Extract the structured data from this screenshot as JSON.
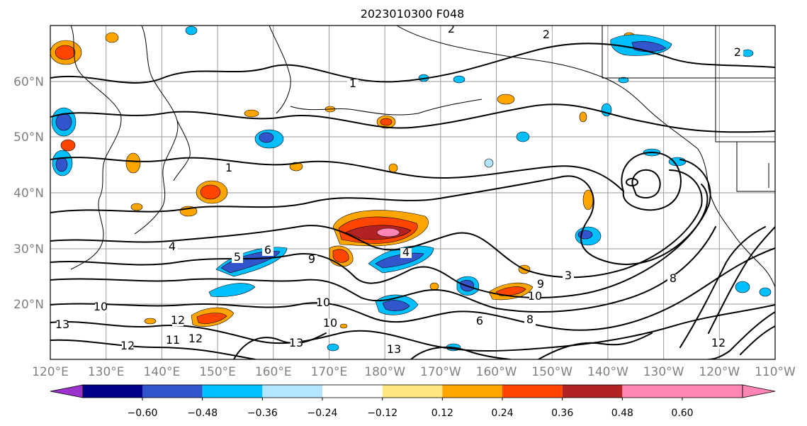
{
  "title": "2023010300 F048",
  "latitude_labels": [
    "60°N",
    "50°N",
    "40°N",
    "30°N",
    "20°N"
  ],
  "longitude_labels": [
    "120°E",
    "130°E",
    "140°E",
    "150°E",
    "160°E",
    "170°E",
    "180°W",
    "170°W",
    "160°W",
    "150°W",
    "140°W",
    "130°W",
    "120°W",
    "110°W"
  ],
  "colorbar": {
    "tick_labels": [
      "−0.60",
      "−0.48",
      "−0.36",
      "−0.24",
      "−0.12",
      "0.12",
      "0.24",
      "0.36",
      "0.48",
      "0.60"
    ],
    "colors": [
      "#9933cc",
      "#00008b",
      "#3355cc",
      "#00bfff",
      "#b3e5ff",
      "#ffffff",
      "#ffe680",
      "#ffa500",
      "#ff4500",
      "#b22222",
      "#ff85b4"
    ]
  },
  "contour_labels": [
    "2",
    "2",
    "2",
    "1",
    "4",
    "9",
    "10",
    "12",
    "12",
    "13",
    "12",
    "3",
    "10",
    "8",
    "9",
    "10",
    "6",
    "8",
    "13",
    "10",
    "1",
    "4",
    "6",
    "5",
    "11",
    "13",
    "12"
  ],
  "colors": {
    "contour": "#000000",
    "grid": "#9a9a9a",
    "axis_label": "#808080",
    "map_background": "#ffffff"
  }
}
